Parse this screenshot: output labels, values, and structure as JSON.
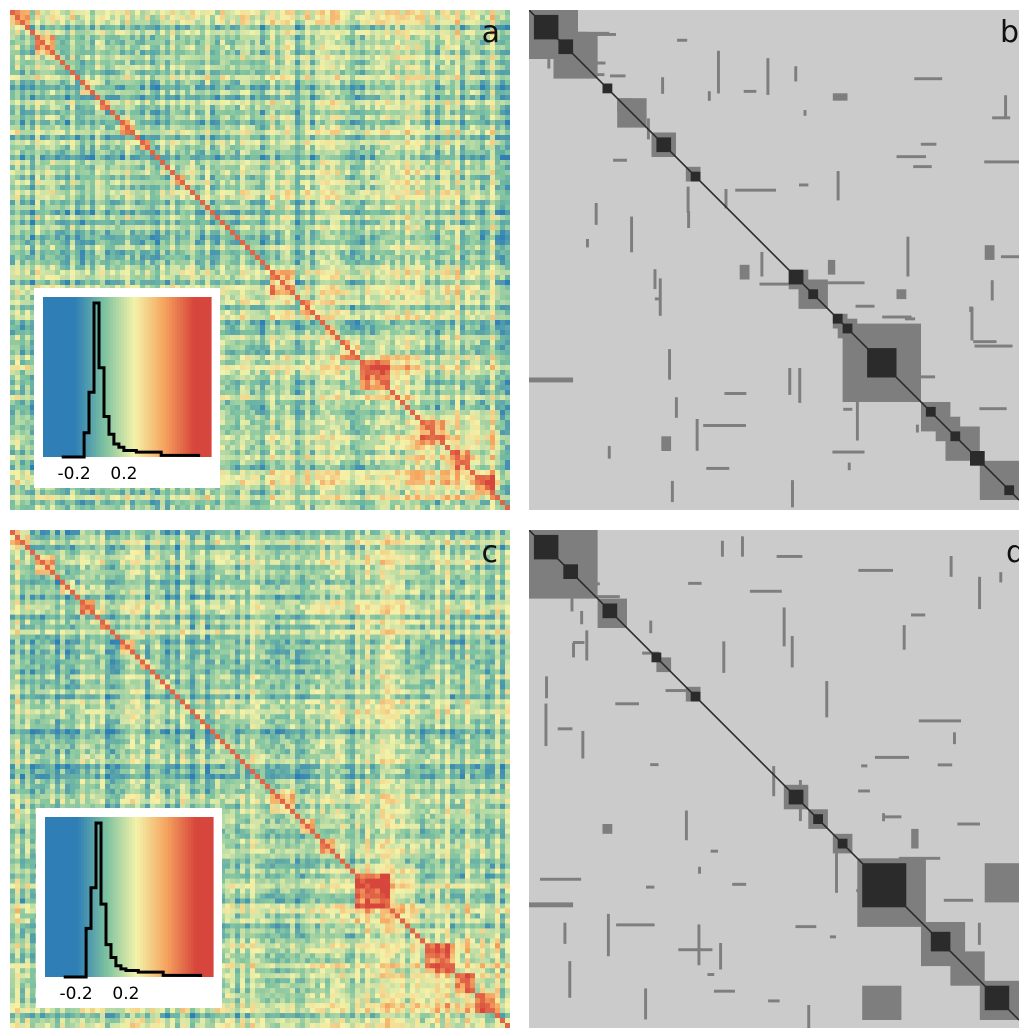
{
  "figure": {
    "panels": [
      {
        "id": "a",
        "letter": "a",
        "kind": "heatmap"
      },
      {
        "id": "b",
        "letter": "b",
        "kind": "clusters"
      },
      {
        "id": "c",
        "letter": "c",
        "kind": "heatmap"
      },
      {
        "id": "d",
        "letter": "d",
        "kind": "clusters"
      }
    ],
    "colors": {
      "blue": "#2f7fb6",
      "green": "#7fc3a0",
      "yellow": "#f4f2a8",
      "orange": "#f5a45f",
      "red": "#d7463c",
      "cluster_bg": "#cbcbcb",
      "cluster_mid": "#7e7e7e",
      "cluster_dark": "#2b2b2b"
    },
    "icons": [
      "colorbar-histogram"
    ]
  },
  "chart_data": [
    {
      "panel": "a",
      "type": "heatmap",
      "colormap": [
        "#2f7fb6",
        "#7fc3a0",
        "#f4f2a8",
        "#f5a45f",
        "#d7463c"
      ],
      "inset_histogram": {
        "type": "line",
        "tick_labels": [
          "-0.2",
          "0.2"
        ],
        "xlim": [
          -0.45,
          0.9
        ],
        "x": [
          -0.3,
          -0.2,
          -0.12,
          -0.08,
          -0.04,
          0.0,
          0.04,
          0.08,
          0.12,
          0.16,
          0.2,
          0.3,
          0.5,
          0.8
        ],
        "y": [
          0.0,
          0.0,
          0.15,
          0.4,
          0.95,
          0.55,
          0.25,
          0.14,
          0.08,
          0.06,
          0.04,
          0.03,
          0.01,
          0.0
        ]
      }
    },
    {
      "panel": "b",
      "type": "heatmap",
      "levels": [
        "background",
        "cluster",
        "core"
      ]
    },
    {
      "panel": "c",
      "type": "heatmap",
      "colormap": [
        "#2f7fb6",
        "#7fc3a0",
        "#f4f2a8",
        "#f5a45f",
        "#d7463c"
      ],
      "inset_histogram": {
        "type": "line",
        "tick_labels": [
          "-0.2",
          "0.2"
        ],
        "xlim": [
          -0.45,
          0.9
        ],
        "x": [
          -0.3,
          -0.2,
          -0.12,
          -0.08,
          -0.04,
          0.0,
          0.04,
          0.08,
          0.12,
          0.16,
          0.2,
          0.3,
          0.5,
          0.8
        ],
        "y": [
          0.0,
          0.0,
          0.3,
          0.55,
          0.95,
          0.45,
          0.2,
          0.12,
          0.07,
          0.05,
          0.04,
          0.03,
          0.01,
          0.0
        ]
      }
    },
    {
      "panel": "d",
      "type": "heatmap",
      "levels": [
        "background",
        "cluster",
        "core"
      ]
    }
  ]
}
